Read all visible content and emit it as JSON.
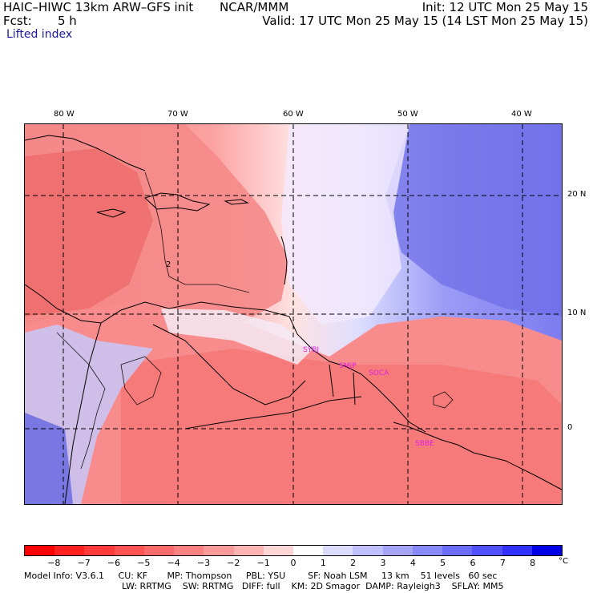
{
  "header": {
    "model_title": "HAIC–HIWC 13km ARW–GFS init",
    "institution": "NCAR/MMM",
    "init_time": "Init: 12 UTC Mon 25 May 15",
    "forecast_label": "Fcst:",
    "forecast_hours": "5 h",
    "valid_time": "Valid: 17 UTC Mon 25 May 15 (14 LST Mon 25 May 15)",
    "field_name": "Lifted index"
  },
  "map": {
    "longitude_labels": [
      "80 W",
      "70 W",
      "60 W",
      "50 W",
      "40 W"
    ],
    "latitude_labels": [
      "20 N",
      "10 N",
      "0"
    ],
    "contour_label": "2",
    "stations": [
      "SYBJ",
      "SMJP",
      "SOCA",
      "SBBE"
    ]
  },
  "colorbar": {
    "tick_labels": [
      "−8",
      "−7",
      "−6",
      "−5",
      "−4",
      "−3",
      "−2",
      "−1",
      "0",
      "1",
      "2",
      "3",
      "4",
      "5",
      "6",
      "7",
      "8"
    ],
    "unit": "°C",
    "colors": [
      "#ff0000",
      "#ff2020",
      "#ff3a3a",
      "#ff5252",
      "#ff6a6a",
      "#ff8282",
      "#ff9a9a",
      "#ffb4b4",
      "#ffd6d6",
      "#ffffff",
      "#dcdcff",
      "#c0c0ff",
      "#a4a4ff",
      "#8888ff",
      "#6c6cff",
      "#5050ff",
      "#3030ff",
      "#0000e8"
    ]
  },
  "footer": {
    "line1": "Model Info: V3.6.1     CU: KF       MP: Thompson     PBL: YSU        SF: Noah LSM     13 km    51 levels   60 sec",
    "line2": "LW: RRTMG    SW: RRTMG   DIFF: full    KM: 2D Smagor  DAMP: Rayleigh3    SFLAY: MM5"
  }
}
